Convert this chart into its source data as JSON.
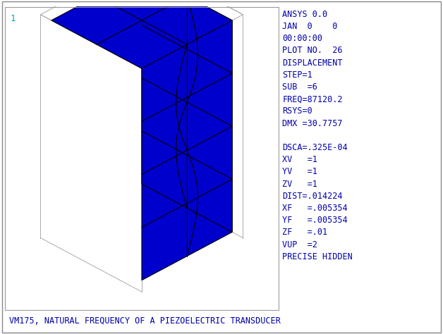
{
  "title": "VM175, NATURAL FREQUENCY OF A PIEZOELECTRIC TRANSDUCER",
  "corner_label": "1",
  "bg_color": "#ffffff",
  "info_text_lines": [
    "ANSYS 0.0",
    "JAN  0    0",
    "00:00:00",
    "PLOT NO.  26",
    "DISPLACEMENT",
    "STEP=1",
    "SUB  =6",
    "FREQ=87120.2",
    "RSYS=0",
    "DMX =30.7757",
    "",
    "DSCA=.325E-04",
    "XV   =1",
    "YV   =1",
    "ZV   =1",
    "DIST=.014224",
    "XF   =.005354",
    "YF   =.005354",
    "ZF   =.01",
    "VUP  =2",
    "PRECISE HIDDEN"
  ],
  "mesh_color": "#0000cc",
  "mesh_edge_color": "#000000",
  "outline_color": "#aaaaaa",
  "font_color": "#0000aa",
  "font_size": 8.5,
  "title_font_size": 8.5,
  "nx": 2,
  "ny": 2,
  "nz": 4
}
